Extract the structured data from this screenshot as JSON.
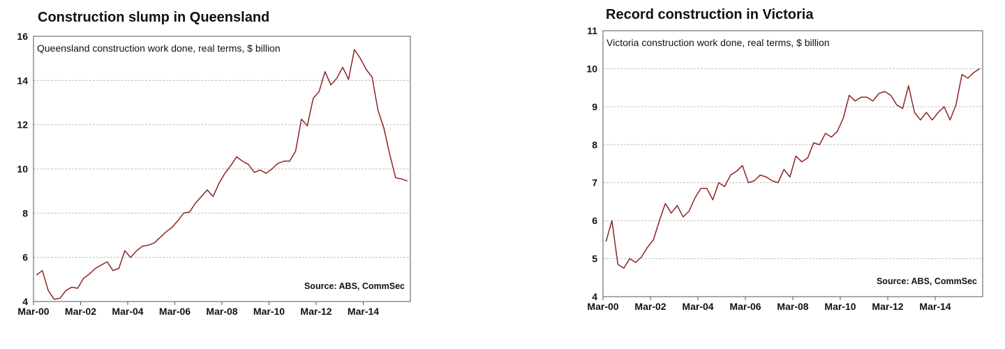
{
  "colors": {
    "line": "#8b2323",
    "grid": "#bdbdbd",
    "frame": "#555555"
  },
  "chart_data": [
    {
      "type": "line",
      "title": "Construction slump in Queensland",
      "annotation": "Queensland construction work done, real terms, $ billion",
      "source": "Source: ABS, CommSec",
      "ylim": [
        4,
        16
      ],
      "yticks": [
        4,
        6,
        8,
        10,
        12,
        14,
        16
      ],
      "xticks": [
        "Mar-00",
        "Mar-02",
        "Mar-04",
        "Mar-06",
        "Mar-08",
        "Mar-10",
        "Mar-12",
        "Mar-14"
      ],
      "grid": true,
      "series": [
        {
          "values": [
            5.2,
            5.4,
            4.5,
            4.1,
            4.15,
            4.5,
            4.65,
            4.6,
            5.05,
            5.25,
            5.5,
            5.65,
            5.8,
            5.4,
            5.5,
            6.3,
            6.0,
            6.3,
            6.5,
            6.55,
            6.65,
            6.9,
            7.15,
            7.35,
            7.65,
            8.0,
            8.05,
            8.45,
            8.75,
            9.05,
            8.75,
            9.35,
            9.8,
            10.15,
            10.55,
            10.35,
            10.2,
            9.85,
            9.95,
            9.8,
            10.0,
            10.25,
            10.35,
            10.35,
            10.8,
            12.25,
            11.95,
            13.2,
            13.5,
            14.4,
            13.8,
            14.1,
            14.6,
            14.05,
            15.4,
            15.0,
            14.5,
            14.15,
            12.65,
            11.85,
            10.65,
            9.6,
            9.55,
            9.45
          ]
        }
      ]
    },
    {
      "type": "line",
      "title": "Record construction in Victoria",
      "annotation": "Victoria construction work done, real terms, $ billion",
      "source": "Source: ABS, CommSec",
      "ylim": [
        4,
        11
      ],
      "yticks": [
        4,
        5,
        6,
        7,
        8,
        9,
        10,
        11
      ],
      "xticks": [
        "Mar-00",
        "Mar-02",
        "Mar-04",
        "Mar-06",
        "Mar-08",
        "Mar-10",
        "Mar-12",
        "Mar-14"
      ],
      "grid": true,
      "series": [
        {
          "values": [
            5.45,
            6.0,
            4.85,
            4.75,
            5.0,
            4.9,
            5.05,
            5.3,
            5.5,
            6.0,
            6.45,
            6.2,
            6.4,
            6.1,
            6.25,
            6.6,
            6.85,
            6.85,
            6.55,
            7.0,
            6.9,
            7.2,
            7.3,
            7.45,
            7.0,
            7.05,
            7.2,
            7.15,
            7.05,
            7.0,
            7.35,
            7.15,
            7.7,
            7.55,
            7.65,
            8.05,
            8.0,
            8.3,
            8.2,
            8.35,
            8.7,
            9.3,
            9.15,
            9.25,
            9.25,
            9.15,
            9.35,
            9.4,
            9.3,
            9.05,
            8.95,
            9.55,
            8.85,
            8.65,
            8.85,
            8.65,
            8.85,
            9.0,
            8.65,
            9.05,
            9.85,
            9.75,
            9.9,
            10.0
          ]
        }
      ]
    }
  ]
}
